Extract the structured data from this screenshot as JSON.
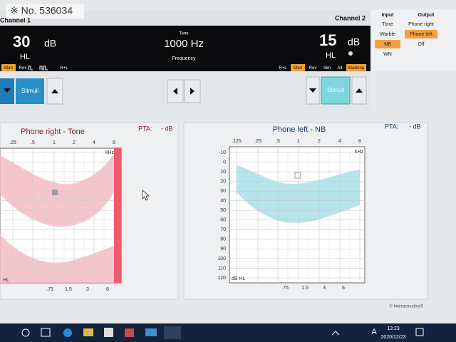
{
  "sticker": "※ No. 536034",
  "channel1": {
    "label": "Channel 1",
    "level": "30",
    "unit": "dB",
    "hl": "HL",
    "buttons": [
      "Man",
      "Rev",
      "R+L"
    ]
  },
  "tone": {
    "label": "Tone",
    "frequency": "1000 Hz",
    "caption": "Frequency"
  },
  "channel2": {
    "label": "Channel 2",
    "level": "15",
    "unit": "dB",
    "hl": "HL",
    "buttons": [
      "R+L",
      "Man",
      "Rev",
      "Sim",
      "Alt",
      "Masking"
    ]
  },
  "input": {
    "title": "Input",
    "options": [
      "Tone",
      "Warble",
      "NB",
      "WN"
    ]
  },
  "output": {
    "title": "Output",
    "options": [
      "Phone right",
      "Phone left",
      "Off"
    ]
  },
  "stimuli": [
    "Stimuli",
    "Stimuli"
  ],
  "left_panel": {
    "title": "Phone right - Tone",
    "pta": "PTA:",
    "pta_value": "- dB",
    "top_freqs": [
      ".25",
      ".5",
      "1",
      "2",
      "4",
      "8"
    ],
    "khz": "kHz",
    "hl": "HL",
    "bottom_freqs": [
      ".75",
      "1.5",
      "3",
      "6"
    ]
  },
  "right_panel": {
    "title": "Phone left - NB",
    "pta": "PTA:",
    "pta_value": "- dB",
    "top_freqs": [
      ".125",
      ".25",
      ".5",
      "1",
      "2",
      "4",
      "8"
    ],
    "khz": "kHz",
    "y_labels": [
      -10,
      0,
      10,
      20,
      30,
      40,
      50,
      60,
      70,
      80,
      90,
      100,
      110,
      120
    ],
    "axis_label": "dB HL",
    "bottom_freqs": [
      ".75",
      "1.5",
      "3",
      "6"
    ]
  },
  "footer": "© Interacoustics®",
  "taskbar": {
    "lang": "A",
    "time": "13:23",
    "date": "2020/12/23"
  }
}
